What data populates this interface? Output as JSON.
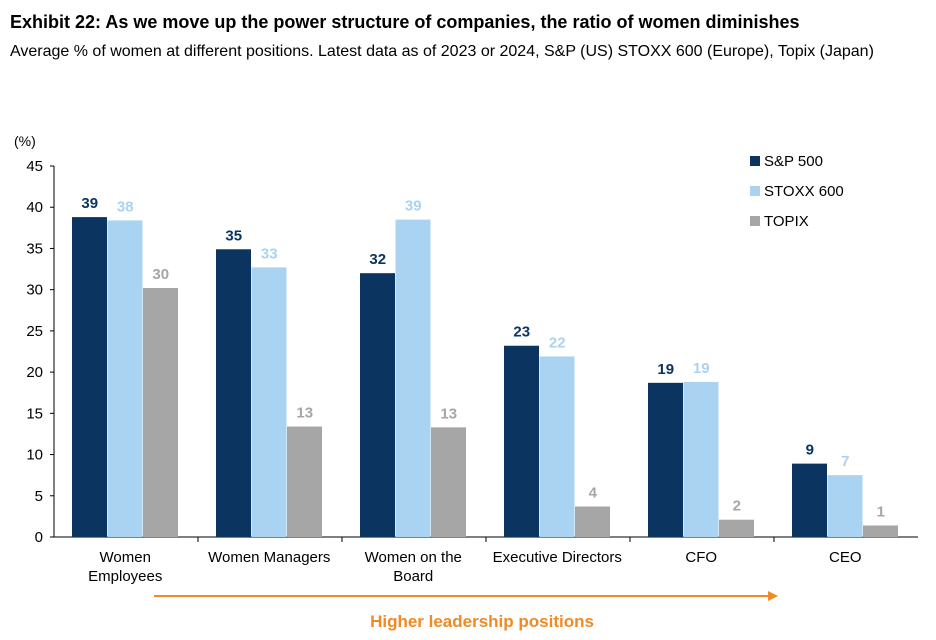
{
  "title": "Exhibit 22: As we move up the power structure of companies, the ratio of women diminishes",
  "subtitle": "Average % of women at different positions. Latest data as of 2023 or 2024, S&P (US) STOXX 600 (Europe), Topix (Japan)",
  "chart_data": {
    "type": "bar",
    "y_unit_label": "(%)",
    "ylim": [
      0,
      45
    ],
    "yticks": [
      0,
      5,
      10,
      15,
      20,
      25,
      30,
      35,
      40,
      45
    ],
    "categories": [
      [
        "Women",
        "Employees"
      ],
      [
        "Women Managers"
      ],
      [
        "Women on the",
        "Board"
      ],
      [
        "Executive Directors"
      ],
      [
        "CFO"
      ],
      [
        "CEO"
      ]
    ],
    "series": [
      {
        "name": "S&P 500",
        "color": "#0b3560",
        "label_color": "#0b3560",
        "values": [
          38.8,
          34.9,
          32.0,
          23.2,
          18.7,
          8.9
        ],
        "labels": [
          "39",
          "35",
          "32",
          "23",
          "19",
          "9"
        ]
      },
      {
        "name": "STOXX 600",
        "color": "#a9d3f0",
        "label_color": "#a9d3f0",
        "values": [
          38.4,
          32.7,
          38.5,
          21.9,
          18.8,
          7.5
        ],
        "labels": [
          "38",
          "33",
          "39",
          "22",
          "19",
          "7"
        ]
      },
      {
        "name": "TOPIX",
        "color": "#a6a6a6",
        "label_color": "#a6a6a6",
        "values": [
          30.2,
          13.4,
          13.3,
          3.7,
          2.1,
          1.4
        ],
        "labels": [
          "30",
          "13",
          "13",
          "4",
          "2",
          "1"
        ]
      }
    ],
    "annotation": {
      "text": "Higher leadership positions",
      "color": "#f08a24"
    },
    "grid": false,
    "legend_position": "top-right"
  }
}
